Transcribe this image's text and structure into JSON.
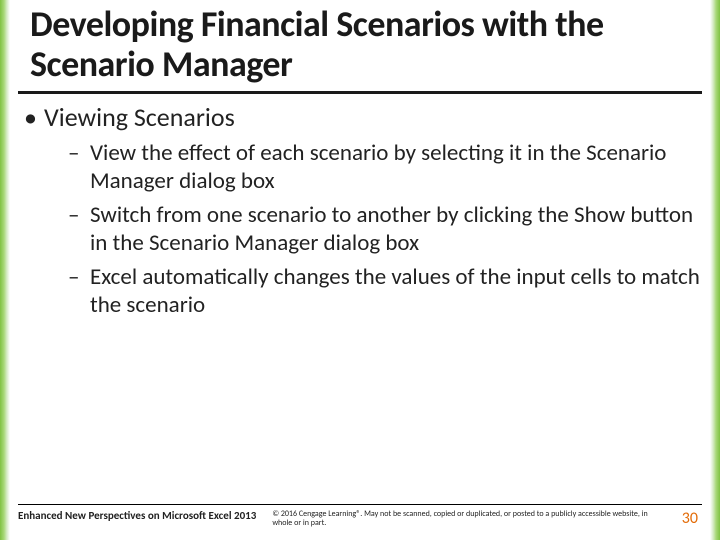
{
  "colors": {
    "border_green": "#7fc241",
    "title_rule": "#1a1a1a",
    "page_number": "#e36c09",
    "text": "#222222",
    "background": "#ffffff"
  },
  "typography": {
    "title_fontsize": 36,
    "level1_fontsize": 26,
    "level2_fontsize": 23,
    "footer_left_fontsize": 11,
    "footer_mid_fontsize": 8,
    "pagenum_fontsize": 16,
    "font_family": "Calibri"
  },
  "title": "Developing Financial Scenarios with the Scenario Manager",
  "bullets": {
    "level1": "Viewing Scenarios",
    "level2": [
      "View the effect of each scenario by selecting it in the Scenario Manager dialog box",
      "Switch from one scenario to another by clicking the Show button in the Scenario Manager dialog box",
      "Excel automatically changes the values of the input cells to match the scenario"
    ]
  },
  "footer": {
    "left": "Enhanced New Perspectives on Microsoft Excel 2013",
    "mid": "© 2016 Cengage Learning®. May not be scanned, copied or duplicated, or posted to a publicly accessible website, in whole or in part.",
    "page": "30"
  }
}
